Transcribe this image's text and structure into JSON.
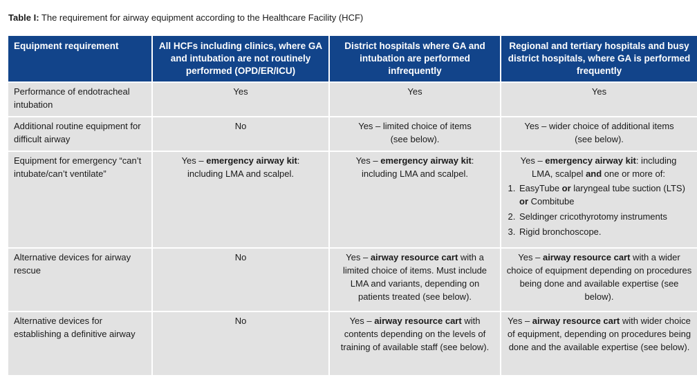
{
  "caption": {
    "label": "Table I:",
    "text": " The requirement for airway equipment according to the Healthcare Facility (HCF)"
  },
  "headers": [
    "Equipment requirement",
    "All HCFs including clinics, where GA and intubation are not routinely performed (OPD/ER/ICU)",
    "District hospitals where GA and intubation are performed infrequently",
    "Regional and tertiary hospitals and busy district hospitals, where GA is performed frequently"
  ],
  "rows": [
    {
      "label": "Performance of endotracheal intubation",
      "c1": "Yes",
      "c2": "Yes",
      "c3": "Yes"
    },
    {
      "label": "Additional routine equipment for difficult airway",
      "c1": "No",
      "c2_a": "Yes – limited choice of items",
      "c2_b": "(see below).",
      "c3_a": "Yes – wider choice of additional items",
      "c3_b": "(see below)."
    },
    {
      "label": "Equipment for emergency “can’t intubate/can’t ventilate”",
      "c1_pre": "Yes – ",
      "c1_bold": "emergency airway kit",
      "c1_post": ":",
      "c1_line2": "including LMA and scalpel.",
      "c2_pre": "Yes – ",
      "c2_bold": "emergency airway kit",
      "c2_post": ":",
      "c2_line2": "including LMA and scalpel.",
      "c3_pre": "Yes – ",
      "c3_bold": "emergency airway kit",
      "c3_post": ": including",
      "c3_line2_pre": "LMA, scalpel ",
      "c3_line2_bold": "and",
      "c3_line2_post": " one or more of:",
      "c3_list": {
        "item1_a": "EasyTube ",
        "item1_or1": "or",
        "item1_b": " laryngeal tube suction (LTS)",
        "item1_or2": "or",
        "item1_c": " Combitube",
        "item2": "Seldinger cricothyrotomy instruments",
        "item3": "Rigid bronchoscope."
      }
    },
    {
      "label": "Alternative devices for airway rescue",
      "c1": "No",
      "c2_pre": "Yes – ",
      "c2_bold": "airway resource cart",
      "c2_post": " with a limited choice of items. Must include LMA and variants, depending on patients treated (see below).",
      "c3_pre": "Yes – ",
      "c3_bold": "airway resource cart",
      "c3_post": " with a wider choice of equipment depending on procedures being done and available expertise (see below)."
    },
    {
      "label": "Alternative devices for establishing a definitive airway",
      "c1": "No",
      "c2_pre": "Yes – ",
      "c2_bold": "airway resource cart",
      "c2_post": " with contents depending on the levels of training of available staff (see below).",
      "c3_pre": "Yes – ",
      "c3_bold": "airway resource cart",
      "c3_post": " with wider choice of equipment, depending on procedures being done and the available expertise (see below)."
    }
  ],
  "colors": {
    "header_bg": "#12448a",
    "header_text": "#ffffff",
    "cell_bg": "#e2e2e2"
  }
}
